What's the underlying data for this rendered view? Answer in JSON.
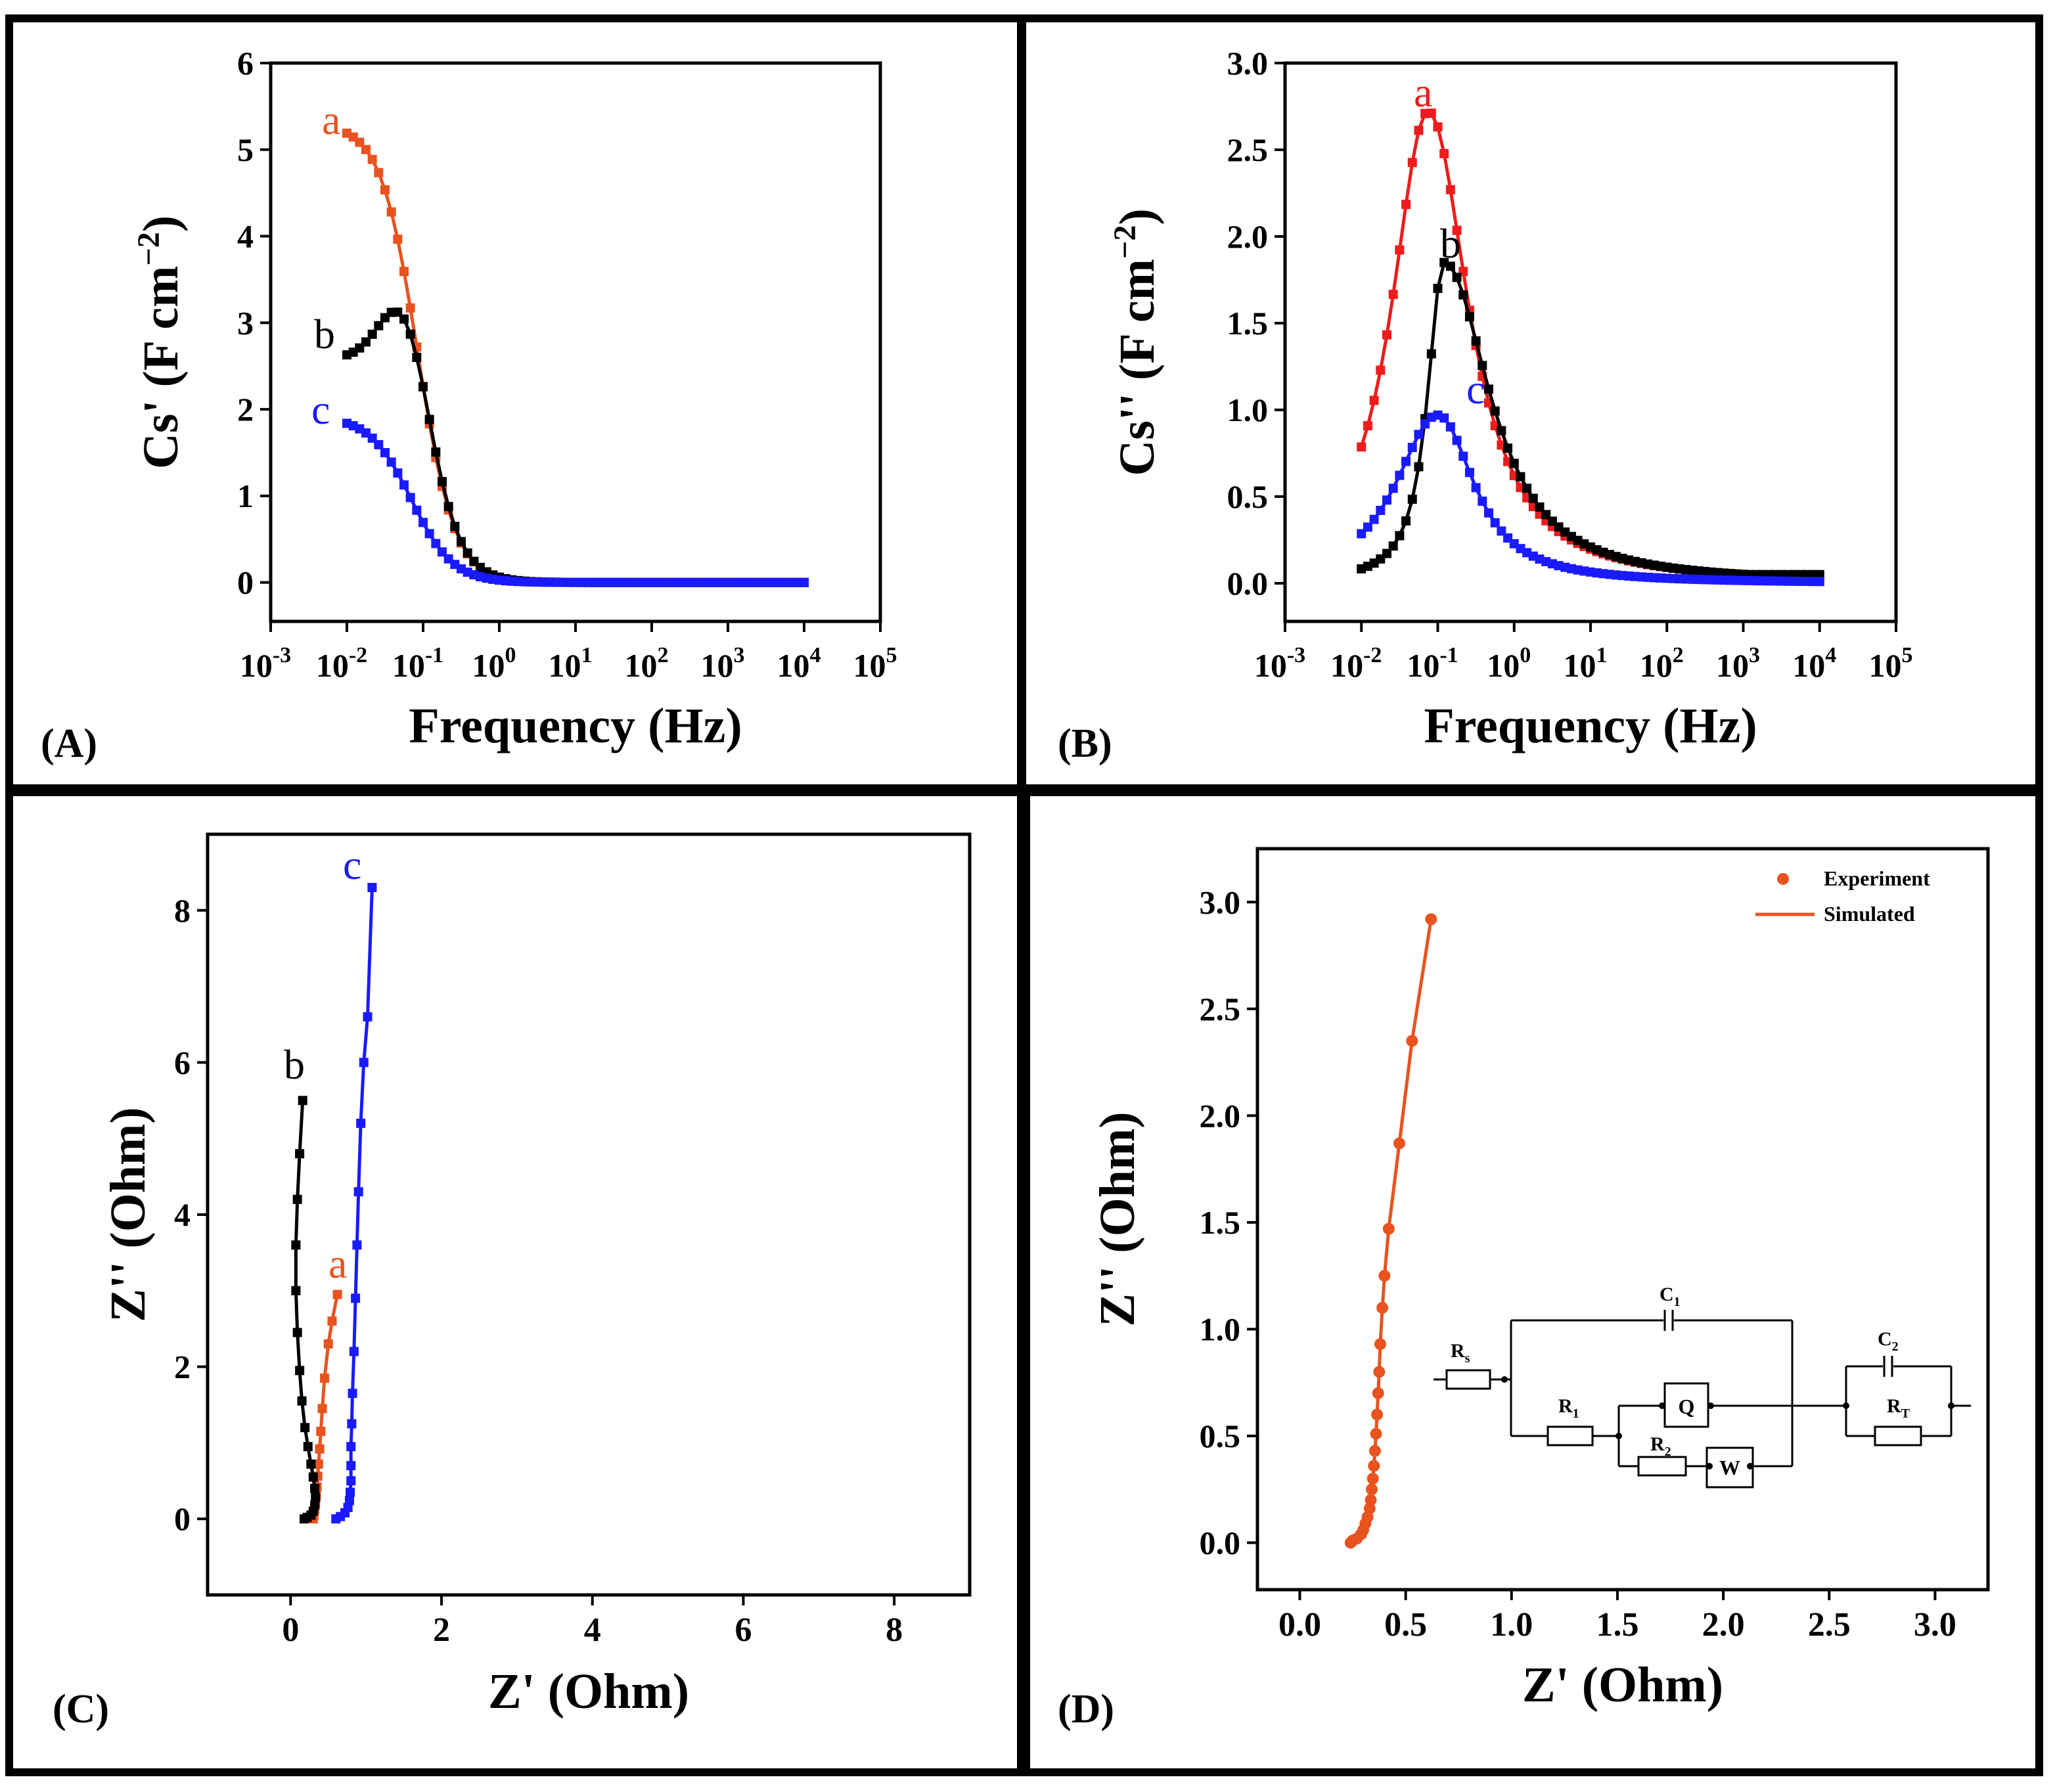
{
  "panels": {
    "A": {
      "label": "(A)"
    },
    "B": {
      "label": "(B)"
    },
    "C": {
      "label": "(C)"
    },
    "D": {
      "label": "(D)"
    }
  },
  "circuit": {
    "rs": "R",
    "rs_sub": "s",
    "r1": "R",
    "r1_sub": "1",
    "r2": "R",
    "r2_sub": "2",
    "rt": "R",
    "rt_sub": "T",
    "c1": "C",
    "c1_sub": "1",
    "c2": "C",
    "c2_sub": "2",
    "q": "Q",
    "w": "W"
  },
  "chart_data": [
    {
      "id": "A",
      "type": "line",
      "xscale": "log",
      "xlabel": "Frequency (Hz)",
      "ylabel_main": "Cs' (F cm",
      "ylabel_sup": "−2",
      "ylabel_end": ")",
      "xlim": [
        0.001,
        100000
      ],
      "ylim": [
        -0.45,
        6
      ],
      "xticks": [
        {
          "base": "10",
          "exp": "-3"
        },
        {
          "base": "10",
          "exp": "-2"
        },
        {
          "base": "10",
          "exp": "-1"
        },
        {
          "base": "10",
          "exp": "0"
        },
        {
          "base": "10",
          "exp": "1"
        },
        {
          "base": "10",
          "exp": "2"
        },
        {
          "base": "10",
          "exp": "3"
        },
        {
          "base": "10",
          "exp": "4"
        },
        {
          "base": "10",
          "exp": "5"
        }
      ],
      "yticks": [
        "0",
        "1",
        "2",
        "3",
        "4",
        "5",
        "6"
      ],
      "series": [
        {
          "name": "a",
          "label": "a",
          "color": "#e8531f",
          "shape": {
            "type": "sigmoid",
            "low": 5.3,
            "f0": 0.085,
            "n": 1.8,
            "bump": 0,
            "bumpf": 0.05,
            "bumpw": 0.3
          }
        },
        {
          "name": "b",
          "label": "b",
          "color": "#000000",
          "shape": {
            "type": "sigmoid",
            "low": 2.6,
            "f0": 0.14,
            "n": 1.9,
            "bump": 0.9,
            "bumpf": 0.06,
            "bumpw": 0.32
          }
        },
        {
          "name": "c",
          "label": "c",
          "color": "#1a1aff",
          "shape": {
            "type": "sigmoid",
            "low": 1.92,
            "f0": 0.07,
            "n": 1.6,
            "bump": 0,
            "bumpf": 0.05,
            "bumpw": 0.3
          }
        }
      ]
    },
    {
      "id": "B",
      "type": "line",
      "xscale": "log",
      "xlabel": "Frequency (Hz)",
      "ylabel_main": "Cs'' (F cm",
      "ylabel_sup": "−2",
      "ylabel_end": ")",
      "xlim": [
        0.001,
        100000
      ],
      "ylim": [
        -0.22,
        3.0
      ],
      "xticks": [
        {
          "base": "10",
          "exp": "-3"
        },
        {
          "base": "10",
          "exp": "-2"
        },
        {
          "base": "10",
          "exp": "-1"
        },
        {
          "base": "10",
          "exp": "0"
        },
        {
          "base": "10",
          "exp": "1"
        },
        {
          "base": "10",
          "exp": "2"
        },
        {
          "base": "10",
          "exp": "3"
        },
        {
          "base": "10",
          "exp": "4"
        },
        {
          "base": "10",
          "exp": "5"
        }
      ],
      "yticks": [
        "0.0",
        "0.5",
        "1.0",
        "1.5",
        "2.0",
        "2.5",
        "3.0"
      ],
      "series": [
        {
          "name": "a",
          "label": "a",
          "color": "#ee1c1c",
          "shape": {
            "type": "peak",
            "peak": 2.72,
            "fpeak": 0.075,
            "wl": 0.95,
            "wr": 1.05,
            "floor": 0
          }
        },
        {
          "name": "b",
          "label": "b",
          "color": "#000000",
          "shape": {
            "type": "peak",
            "peak": 1.85,
            "fpeak": 0.12,
            "wl": 0.42,
            "wr": 1.2,
            "floor": 0.05
          }
        },
        {
          "name": "c",
          "label": "c",
          "color": "#1a1aff",
          "shape": {
            "type": "peak",
            "peak": 0.97,
            "fpeak": 0.1,
            "wl": 1.1,
            "wr": 0.95,
            "floor": 0
          }
        }
      ]
    },
    {
      "id": "C",
      "type": "line",
      "xlabel": "Z' (Ohm)",
      "ylabel": "Z'' (Ohm)",
      "xlim": [
        -1.1,
        9
      ],
      "ylim": [
        -1.0,
        9.0
      ],
      "xticks": [
        "0",
        "2",
        "4",
        "6",
        "8"
      ],
      "yticks": [
        "0",
        "2",
        "4",
        "6",
        "8"
      ],
      "series": [
        {
          "name": "a",
          "label": "a",
          "color": "#e8531f",
          "x": [
            0.3,
            0.31,
            0.32,
            0.33,
            0.34,
            0.35,
            0.36,
            0.37,
            0.385,
            0.4,
            0.42,
            0.45,
            0.5,
            0.55,
            0.62
          ],
          "y": [
            0.0,
            0.05,
            0.12,
            0.2,
            0.3,
            0.42,
            0.56,
            0.72,
            0.92,
            1.15,
            1.45,
            1.85,
            2.3,
            2.6,
            2.95
          ]
        },
        {
          "name": "b",
          "label": "b",
          "color": "#000000",
          "x": [
            0.18,
            0.22,
            0.27,
            0.3,
            0.32,
            0.33,
            0.32,
            0.3,
            0.27,
            0.23,
            0.19,
            0.15,
            0.12,
            0.09,
            0.07,
            0.07,
            0.09,
            0.12,
            0.16
          ],
          "y": [
            0.0,
            0.02,
            0.05,
            0.1,
            0.18,
            0.28,
            0.4,
            0.55,
            0.72,
            0.95,
            1.2,
            1.55,
            1.95,
            2.45,
            3.0,
            3.6,
            4.2,
            4.8,
            5.5
          ]
        },
        {
          "name": "c",
          "label": "c",
          "color": "#1a1aff",
          "x": [
            0.6,
            0.66,
            0.72,
            0.76,
            0.78,
            0.79,
            0.8,
            0.8,
            0.8,
            0.81,
            0.82,
            0.84,
            0.86,
            0.88,
            0.9,
            0.93,
            0.97,
            1.02,
            1.08
          ],
          "y": [
            0.0,
            0.03,
            0.08,
            0.15,
            0.24,
            0.35,
            0.5,
            0.7,
            0.95,
            1.25,
            1.65,
            2.2,
            2.9,
            3.6,
            4.3,
            5.2,
            6.0,
            6.6,
            8.3
          ]
        }
      ]
    },
    {
      "id": "D",
      "type": "line",
      "xlabel": "Z' (Ohm)",
      "ylabel": "Z'' (Ohm)",
      "xlim": [
        -0.2,
        3.25
      ],
      "ylim": [
        -0.22,
        3.25
      ],
      "xticks": [
        "0.0",
        "0.5",
        "1.0",
        "1.5",
        "2.0",
        "2.5",
        "3.0"
      ],
      "yticks": [
        "0.0",
        "0.5",
        "1.0",
        "1.5",
        "2.0",
        "2.5",
        "3.0"
      ],
      "legend": [
        {
          "label": "Experiment",
          "kind": "marker"
        },
        {
          "label": "Simulated",
          "kind": "line"
        }
      ],
      "series": [
        {
          "name": "Experiment",
          "color": "#e8531f",
          "x": [
            0.24,
            0.25,
            0.27,
            0.29,
            0.3,
            0.31,
            0.32,
            0.33,
            0.335,
            0.34,
            0.345,
            0.35,
            0.355,
            0.36,
            0.365,
            0.37,
            0.375,
            0.38,
            0.39,
            0.4,
            0.42,
            0.47,
            0.53,
            0.62
          ],
          "y": [
            0.0,
            0.01,
            0.02,
            0.04,
            0.06,
            0.09,
            0.12,
            0.16,
            0.2,
            0.25,
            0.3,
            0.36,
            0.43,
            0.51,
            0.6,
            0.7,
            0.8,
            0.93,
            1.1,
            1.25,
            1.47,
            1.87,
            2.35,
            2.92
          ]
        }
      ]
    }
  ]
}
